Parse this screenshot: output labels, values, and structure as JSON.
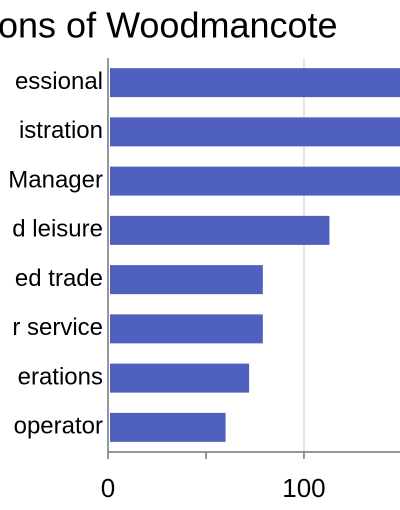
{
  "chart_data": {
    "type": "barh",
    "title": "ons of Woodmancote",
    "categories": [
      "essional",
      "istration",
      "Manager",
      "d leisure",
      "ed trade",
      "r service",
      "erations",
      "operator"
    ],
    "values": [
      150,
      150,
      150,
      113,
      79,
      79,
      72,
      60
    ],
    "color": "#5060be",
    "xlim": [
      0,
      149
    ],
    "xticks": [
      0,
      100
    ],
    "minor_xticks": [
      50
    ],
    "grid": true
  }
}
